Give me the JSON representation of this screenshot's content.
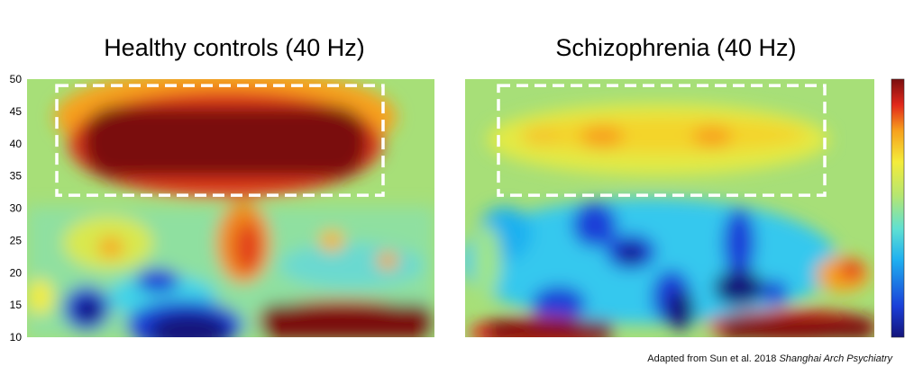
{
  "chart_data": [
    {
      "type": "heatmap",
      "title": "Healthy controls (40 Hz)",
      "ylim": [
        10,
        50
      ],
      "yticks": [
        10,
        15,
        20,
        25,
        30,
        35,
        40,
        45,
        50
      ],
      "highlight_box": {
        "y_range": [
          32,
          49
        ]
      },
      "colormap": "jet"
    },
    {
      "type": "heatmap",
      "title": "Schizophrenia (40 Hz)",
      "ylim": [
        10,
        50
      ],
      "highlight_box": {
        "y_range": [
          32,
          49
        ]
      },
      "colormap": "jet"
    }
  ],
  "credit": {
    "prefix": "Adapted from Sun et al. 2018 ",
    "journal": "Shanghai Arch Psychiatry"
  }
}
